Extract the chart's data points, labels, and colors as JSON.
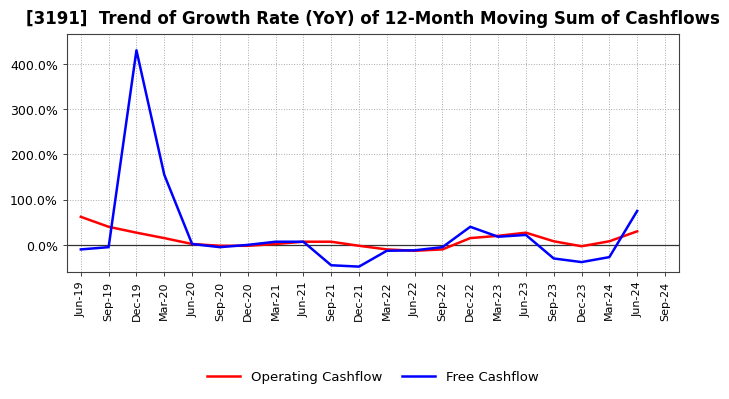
{
  "title": "[3191]  Trend of Growth Rate (YoY) of 12-Month Moving Sum of Cashflows",
  "x_labels": [
    "Jun-19",
    "Sep-19",
    "Dec-19",
    "Mar-20",
    "Jun-20",
    "Sep-20",
    "Dec-20",
    "Mar-21",
    "Jun-21",
    "Sep-21",
    "Dec-21",
    "Mar-22",
    "Jun-22",
    "Sep-22",
    "Dec-22",
    "Mar-23",
    "Jun-23",
    "Sep-23",
    "Dec-23",
    "Mar-24",
    "Jun-24",
    "Sep-24"
  ],
  "operating_cashflow": [
    0.62,
    0.4,
    0.27,
    0.15,
    0.02,
    -0.02,
    -0.02,
    0.02,
    0.07,
    0.07,
    -0.02,
    -0.1,
    -0.13,
    -0.1,
    0.15,
    0.2,
    0.27,
    0.08,
    -0.03,
    0.08,
    0.3,
    null
  ],
  "free_cashflow": [
    -0.1,
    -0.05,
    4.3,
    1.55,
    0.02,
    -0.05,
    0.0,
    0.07,
    0.07,
    -0.45,
    -0.48,
    -0.13,
    -0.12,
    -0.05,
    0.4,
    0.18,
    0.22,
    -0.3,
    -0.38,
    -0.27,
    0.75,
    null
  ],
  "operating_color": "#ff0000",
  "free_color": "#0000ff",
  "background_color": "#ffffff",
  "grid_color": "#aaaaaa",
  "border_color": "#404040",
  "ylim": [
    -0.6,
    4.65
  ],
  "yticks": [
    0.0,
    1.0,
    2.0,
    3.0,
    4.0
  ],
  "ytick_labels": [
    "0.0%",
    "100.0%",
    "200.0%",
    "300.0%",
    "400.0%"
  ],
  "legend_operating": "Operating Cashflow",
  "legend_free": "Free Cashflow",
  "title_fontsize": 12,
  "tick_fontsize": 9,
  "line_width": 1.8
}
